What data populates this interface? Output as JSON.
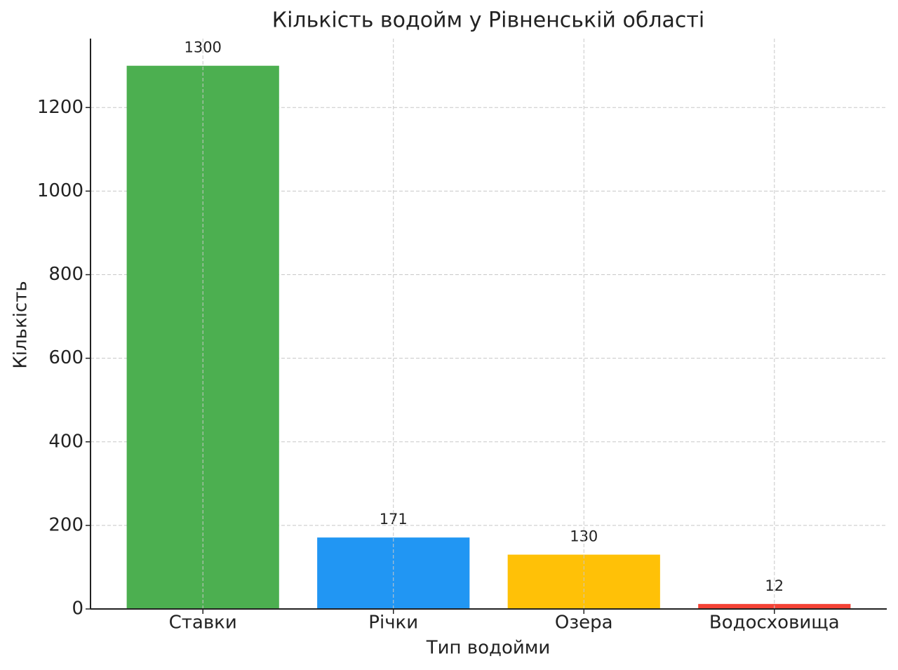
{
  "chart_data": {
    "type": "bar",
    "title": "Кількість водойм у Рівненській області",
    "x_label": "Тип водойми",
    "y_label": "Кількість",
    "categories": [
      "Ставки",
      "Річки",
      "Озера",
      "Водосховища"
    ],
    "values": [
      1300,
      171,
      130,
      12
    ],
    "colors": [
      "#4caf50",
      "#2196f3",
      "#ffc107",
      "#f44336"
    ],
    "ylim": [
      0,
      1365
    ],
    "yticks": [
      0,
      200,
      400,
      600,
      800,
      1000,
      1200
    ],
    "grid": true
  }
}
